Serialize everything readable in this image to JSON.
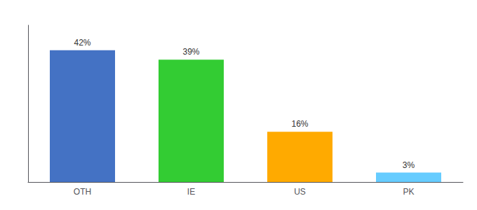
{
  "chart_data": {
    "type": "bar",
    "categories": [
      "OTH",
      "IE",
      "US",
      "PK"
    ],
    "values": [
      42,
      39,
      16,
      3
    ],
    "value_labels": [
      "42%",
      "39%",
      "16%",
      "3%"
    ],
    "colors": [
      "#4472c4",
      "#33cc33",
      "#ffaa00",
      "#66ccff"
    ],
    "ylim": [
      0,
      50
    ],
    "data_labels": true,
    "tick_labels": "x",
    "grid": false
  }
}
